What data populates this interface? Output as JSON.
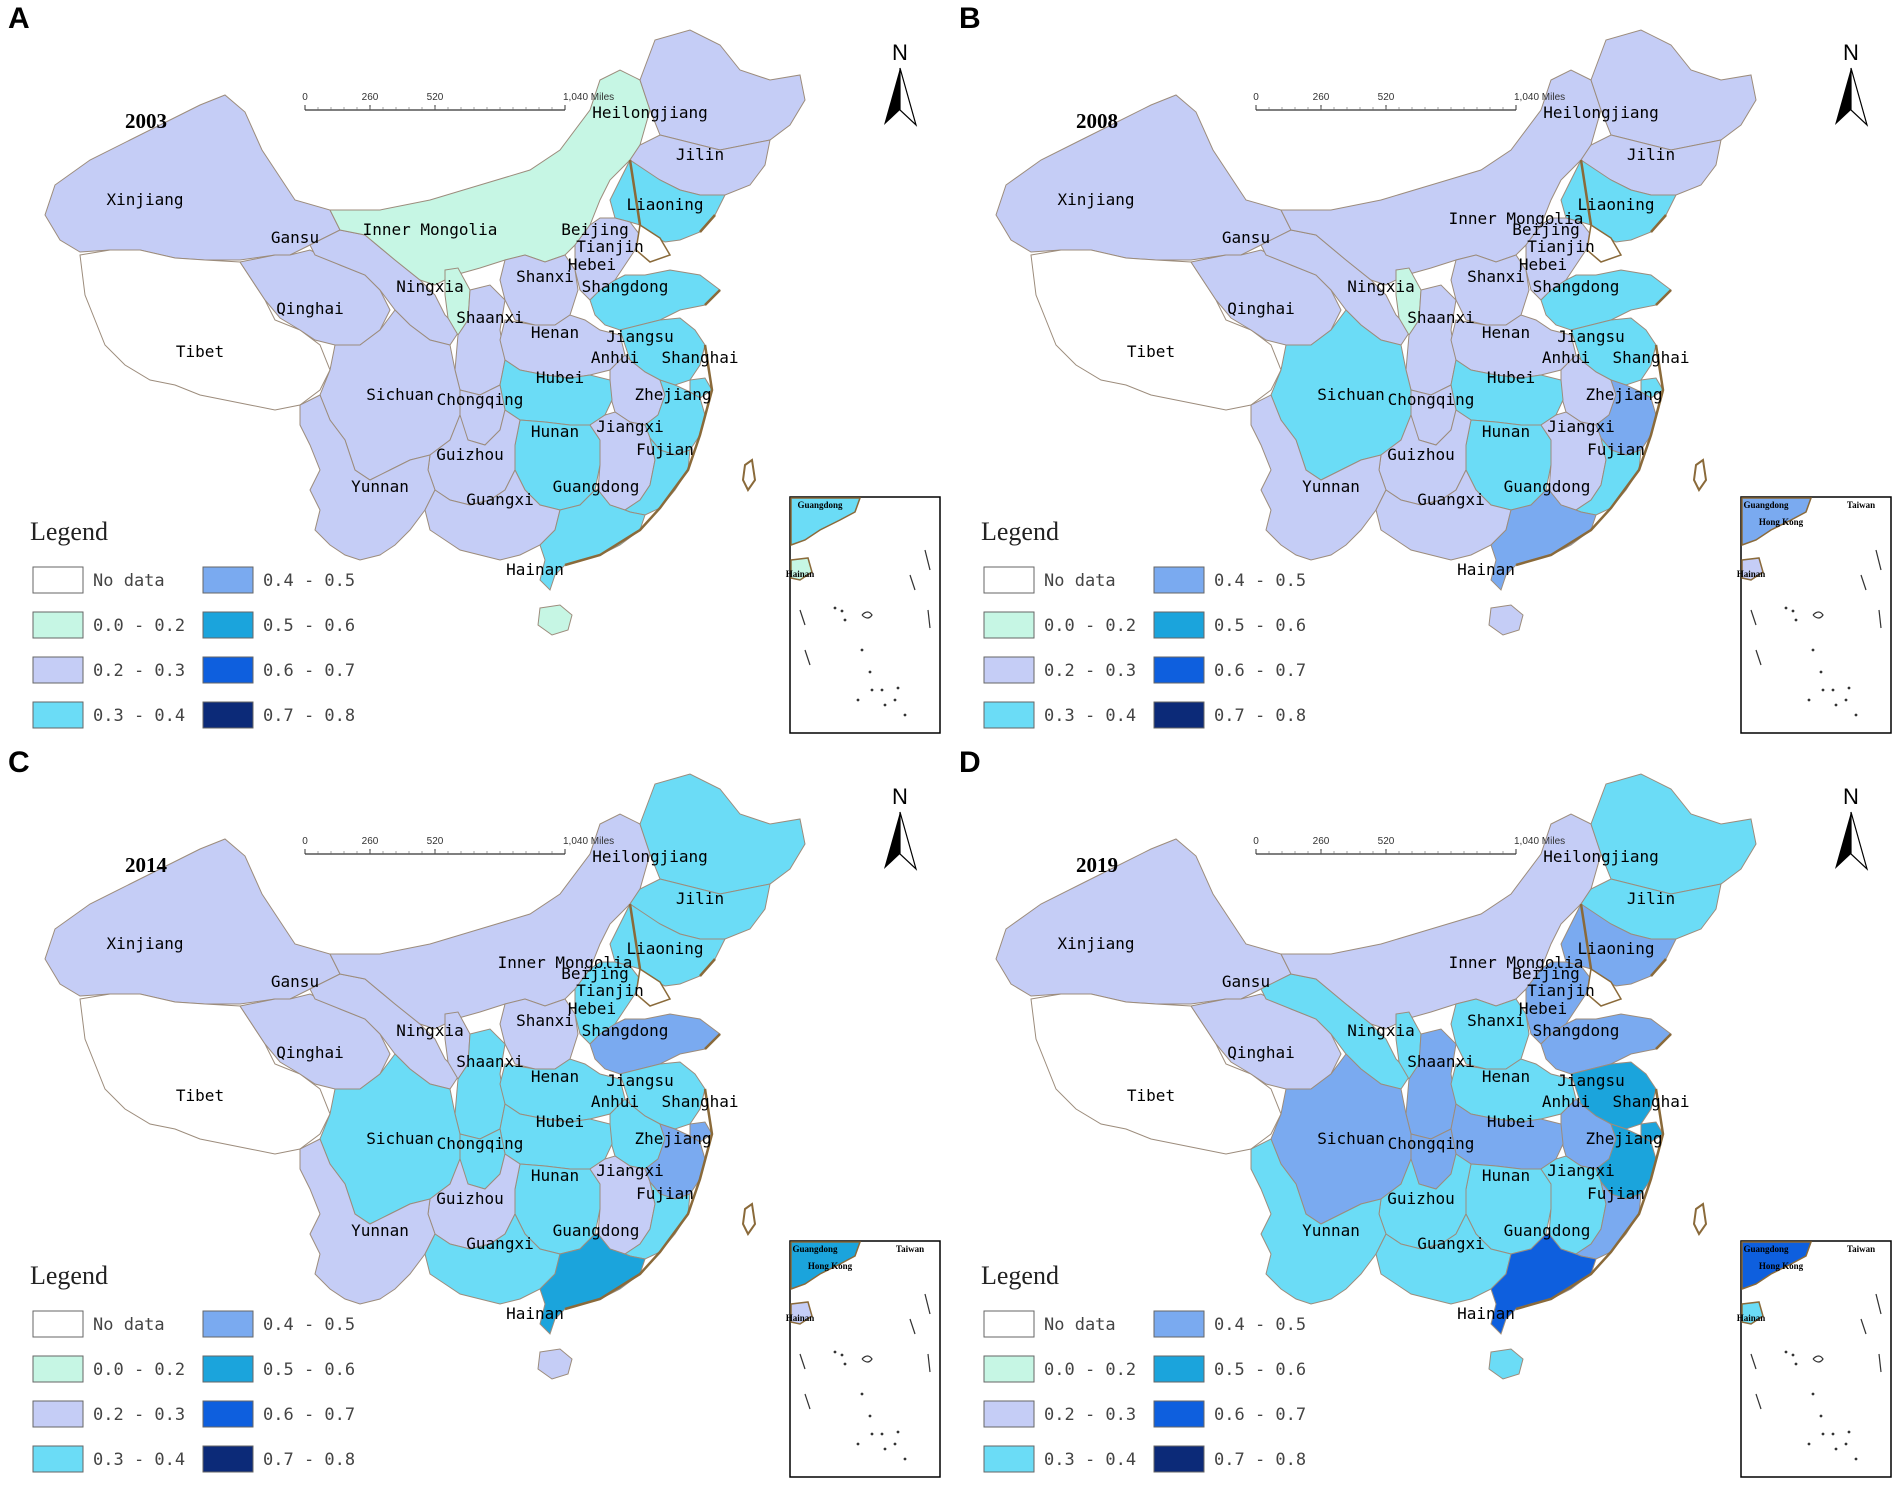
{
  "legend_title": "Legend",
  "north_label": "N",
  "scale": {
    "ticks": [
      "0",
      "260",
      "520",
      "1,040 Miles"
    ]
  },
  "legend_classes": [
    {
      "label": "No data",
      "color": "#ffffff"
    },
    {
      "label": "0.0 - 0.2",
      "color": "#c6f6e4"
    },
    {
      "label": "0.2 - 0.3",
      "color": "#c5cdf6"
    },
    {
      "label": "0.3 - 0.4",
      "color": "#6bdcf6"
    },
    {
      "label": "0.4 - 0.5",
      "color": "#7aaaf0"
    },
    {
      "label": "0.5 - 0.6",
      "color": "#1ba4dc"
    },
    {
      "label": "0.6 - 0.7",
      "color": "#0e5fde"
    },
    {
      "label": "0.7 - 0.8",
      "color": "#0c2a78"
    }
  ],
  "panels": [
    {
      "letter": "A",
      "year": "2003",
      "inset_labels": [
        "Guangdong",
        "Hainan"
      ],
      "regions": {
        "xinjiang": 2,
        "tibet": 0,
        "qinghai": 2,
        "gansu": 2,
        "inner_mongolia": 1,
        "heilongjiang": 2,
        "jilin": 2,
        "liaoning": 3,
        "ningxia": 1,
        "shaanxi": 2,
        "shanxi": 2,
        "beijing": 2,
        "tianjin": 2,
        "hebei": 2,
        "shandong": 3,
        "henan": 2,
        "jiangsu": 3,
        "anhui": 2,
        "shanghai": 3,
        "hubei": 3,
        "sichuan": 2,
        "chongqing": 2,
        "zhejiang": 3,
        "hunan": 3,
        "jiangxi": 2,
        "fujian": 3,
        "guizhou": 2,
        "yunnan": 2,
        "guangxi": 2,
        "guangdong": 3,
        "hainan": 1
      },
      "labels": {
        "heilongjiang": "Heilongjiang",
        "jilin": "Jilin",
        "xinjiang": "Xinjiang",
        "liaoning": "Liaoning",
        "gansu": "Gansu",
        "inner_mongolia": "Inner Mongolia",
        "beijing": "Beijing",
        "tianjin": "Tianjin",
        "hebei": "Hebei",
        "shanxi": "Shanxi",
        "ningxia": "Ningxia",
        "shandong": "Shangdong",
        "qinghai": "Qinghai",
        "shaanxi": "Shaanxi",
        "henan": "Henan",
        "jiangsu": "Jiangsu",
        "tibet": "Tibet",
        "anhui": "Anhui",
        "shanghai": "Shanghai",
        "hubei": "Hubei",
        "sichuan": "Sichuan",
        "chongqing": "Chongqing",
        "zhejiang": "Zhejiang",
        "hunan": "Hunan",
        "jiangxi": "Jiangxi",
        "fujian": "Fujian",
        "guizhou": "Guizhou",
        "yunnan": "Yunnan",
        "guangxi": "Guangxi",
        "guangdong": "Guangdong",
        "hainan": "Hainan"
      }
    },
    {
      "letter": "B",
      "year": "2008",
      "inset_labels": [
        "Guangdong",
        "Taiwan",
        "Hong Kong",
        "Hainan"
      ],
      "regions": {
        "xinjiang": 2,
        "tibet": 0,
        "qinghai": 2,
        "gansu": 2,
        "inner_mongolia": 2,
        "heilongjiang": 2,
        "jilin": 2,
        "liaoning": 3,
        "ningxia": 1,
        "shaanxi": 2,
        "shanxi": 2,
        "beijing": 5,
        "tianjin": 2,
        "hebei": 2,
        "shandong": 3,
        "henan": 2,
        "jiangsu": 3,
        "anhui": 2,
        "shanghai": 3,
        "hubei": 3,
        "sichuan": 3,
        "chongqing": 2,
        "zhejiang": 4,
        "hunan": 3,
        "jiangxi": 2,
        "fujian": 3,
        "guizhou": 2,
        "yunnan": 2,
        "guangxi": 2,
        "guangdong": 4,
        "hainan": 2
      },
      "labels": {
        "heilongjiang": "Heilongjiang",
        "jilin": "Jilin",
        "xinjiang": "Xinjiang",
        "inner_mongolia": "Inner Mongolia",
        "liaoning": "Liaoning",
        "gansu": "Gansu",
        "beijing": "Beijing",
        "tianjin": "Tianjin",
        "hebei": "Hebei",
        "shanxi": "Shanxi",
        "ningxia": "Ningxia",
        "shandong": "Shangdong",
        "qinghai": "Qinghai",
        "shaanxi": "Shaanxi",
        "henan": "Henan",
        "jiangsu": "Jiangsu",
        "tibet": "Tibet",
        "anhui": "Anhui",
        "shanghai": "Shanghai",
        "hubei": "Hubei",
        "sichuan": "Sichuan",
        "chongqing": "Chongqing",
        "zhejiang": "Zhejiang",
        "jiangxi": "Jiangxi",
        "hunan": "Hunan",
        "fujian": "Fujian",
        "guizhou": "Guizhou",
        "yunnan": "Yunnan",
        "guangxi": "Guangxi",
        "guangdong": "Guangdong",
        "hainan": "Hainan"
      }
    },
    {
      "letter": "C",
      "year": "2014",
      "inset_labels": [
        "Guangdong",
        "Taiwan",
        "Hong Kong",
        "Hainan"
      ],
      "regions": {
        "xinjiang": 2,
        "tibet": 0,
        "qinghai": 2,
        "gansu": 2,
        "inner_mongolia": 2,
        "heilongjiang": 3,
        "jilin": 3,
        "liaoning": 3,
        "ningxia": 2,
        "shaanxi": 3,
        "shanxi": 2,
        "beijing": 6,
        "tianjin": 4,
        "hebei": 3,
        "shandong": 4,
        "henan": 3,
        "jiangsu": 3,
        "anhui": 3,
        "shanghai": 4,
        "hubei": 3,
        "sichuan": 3,
        "chongqing": 3,
        "zhejiang": 4,
        "hunan": 3,
        "jiangxi": 2,
        "fujian": 3,
        "guizhou": 2,
        "yunnan": 2,
        "guangxi": 3,
        "guangdong": 5,
        "hainan": 2
      },
      "labels": {
        "heilongjiang": "Heilongjiang",
        "jilin": "Jilin",
        "xinjiang": "Xinjiang",
        "inner_mongolia": "Inner Mongolia",
        "liaoning": "Liaoning",
        "gansu": "Gansu",
        "beijing": "Beijing",
        "tianjin": "Tianjin",
        "hebei": "Hebei",
        "shanxi": "Shanxi",
        "ningxia": "Ningxia",
        "shandong": "Shangdong",
        "qinghai": "Qinghai",
        "shaanxi": "Shaanxi",
        "henan": "Henan",
        "jiangsu": "Jiangsu",
        "tibet": "Tibet",
        "anhui": "Anhui",
        "shanghai": "Shanghai",
        "hubei": "Hubei",
        "sichuan": "Sichuan",
        "chongqing": "Chongqing",
        "zhejiang": "Zhejiang",
        "jiangxi": "Jiangxi",
        "hunan": "Hunan",
        "fujian": "Fujian",
        "guizhou": "Guizhou",
        "yunnan": "Yunnan",
        "guangxi": "Guangxi",
        "guangdong": "Guangdong",
        "hainan": "Hainan"
      }
    },
    {
      "letter": "D",
      "year": "2019",
      "inset_labels": [
        "Guangdong",
        "Taiwan",
        "Hong Kong",
        "Hainan"
      ],
      "regions": {
        "xinjiang": 2,
        "tibet": 0,
        "qinghai": 2,
        "gansu": 3,
        "inner_mongolia": 2,
        "heilongjiang": 3,
        "jilin": 3,
        "liaoning": 4,
        "ningxia": 3,
        "shaanxi": 4,
        "shanxi": 3,
        "beijing": 6,
        "tianjin": 4,
        "hebei": 4,
        "shandong": 4,
        "henan": 3,
        "jiangsu": 5,
        "anhui": 4,
        "shanghai": 5,
        "hubei": 4,
        "sichuan": 4,
        "chongqing": 4,
        "zhejiang": 5,
        "hunan": 3,
        "jiangxi": 3,
        "fujian": 4,
        "guizhou": 3,
        "yunnan": 3,
        "guangxi": 3,
        "guangdong": 6,
        "hainan": 3
      },
      "labels": {
        "heilongjiang": "Heilongjiang",
        "jilin": "Jilin",
        "xinjiang": "Xinjiang",
        "inner_mongolia": "Inner Mongolia",
        "liaoning": "Liaoning",
        "gansu": "Gansu",
        "beijing": "Beijing",
        "tianjin": "Tianjin",
        "hebei": "Hebei",
        "shanxi": "Shanxi",
        "ningxia": "Ningxia",
        "shandong": "Shangdong",
        "qinghai": "Qinghai",
        "shaanxi": "Shaanxi",
        "henan": "Henan",
        "jiangsu": "Jiangsu",
        "tibet": "Tibet",
        "anhui": "Anhui",
        "shanghai": "Shanghai",
        "hubei": "Hubei",
        "sichuan": "Sichuan",
        "chongqing": "Chongqing",
        "zhejiang": "Zhejiang",
        "jiangxi": "Jiangxi",
        "hunan": "Hunan",
        "fujian": "Fujian",
        "guizhou": "Guizhou",
        "yunnan": "Yunnan",
        "guangxi": "Guangxi",
        "guangdong": "Guangdong",
        "hainan": "Hainan"
      }
    }
  ]
}
